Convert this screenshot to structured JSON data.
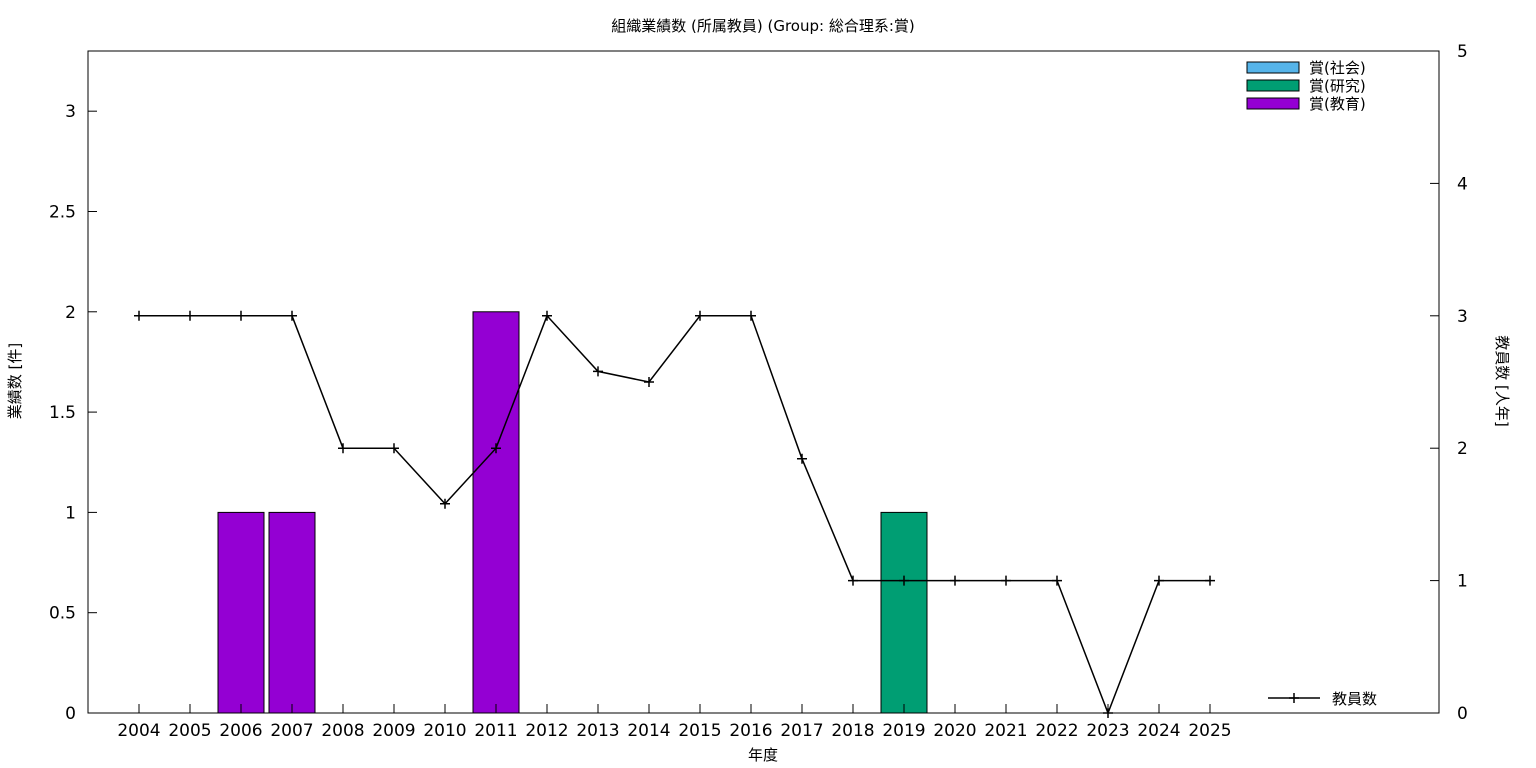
{
  "chart_data": {
    "type": "bar",
    "title": "組織業績数 (所属教員) (Group: 総合理系:賞)",
    "xlabel": "年度",
    "ylabel": "業績数 [件]",
    "y2label": "教員数 [人年]",
    "categories": [
      "2004",
      "2005",
      "2006",
      "2007",
      "2008",
      "2009",
      "2010",
      "2011",
      "2012",
      "2013",
      "2014",
      "2015",
      "2016",
      "2017",
      "2018",
      "2019",
      "2020",
      "2021",
      "2022",
      "2023",
      "2024",
      "2025"
    ],
    "ylim": [
      0,
      3.3
    ],
    "y2lim": [
      0,
      5
    ],
    "yticks": [
      "0",
      "0.5",
      "1",
      "1.5",
      "2",
      "2.5",
      "3"
    ],
    "y2ticks": [
      "0",
      "1",
      "2",
      "3",
      "4",
      "5"
    ],
    "grid": false,
    "legend_position": "top-right",
    "series": [
      {
        "name": "賞(社会)",
        "kind": "bar",
        "color": "#56b4e9",
        "values": [
          0,
          0,
          0,
          0,
          0,
          0,
          0,
          0,
          0,
          0,
          0,
          0,
          0,
          0,
          0,
          0,
          0,
          0,
          0,
          0,
          0,
          0
        ]
      },
      {
        "name": "賞(研究)",
        "kind": "bar",
        "color": "#009e73",
        "values": [
          0,
          0,
          0,
          0,
          0,
          0,
          0,
          0,
          0,
          0,
          0,
          0,
          0,
          0,
          0,
          1,
          0,
          0,
          0,
          0,
          0,
          0
        ]
      },
      {
        "name": "賞(教育)",
        "kind": "bar",
        "color": "#9400d3",
        "values": [
          0,
          0,
          1,
          1,
          0,
          0,
          0,
          2,
          0,
          0,
          0,
          0,
          0,
          0,
          0,
          0,
          0,
          0,
          0,
          0,
          0,
          0
        ]
      },
      {
        "name": "教員数",
        "kind": "line",
        "axis": "y2",
        "color": "#000000",
        "values": [
          3,
          3,
          3,
          3,
          2,
          2,
          1.58,
          2,
          3,
          2.58,
          2.5,
          3,
          3,
          1.92,
          1,
          1,
          1,
          1,
          1,
          0,
          1,
          1
        ]
      }
    ]
  }
}
